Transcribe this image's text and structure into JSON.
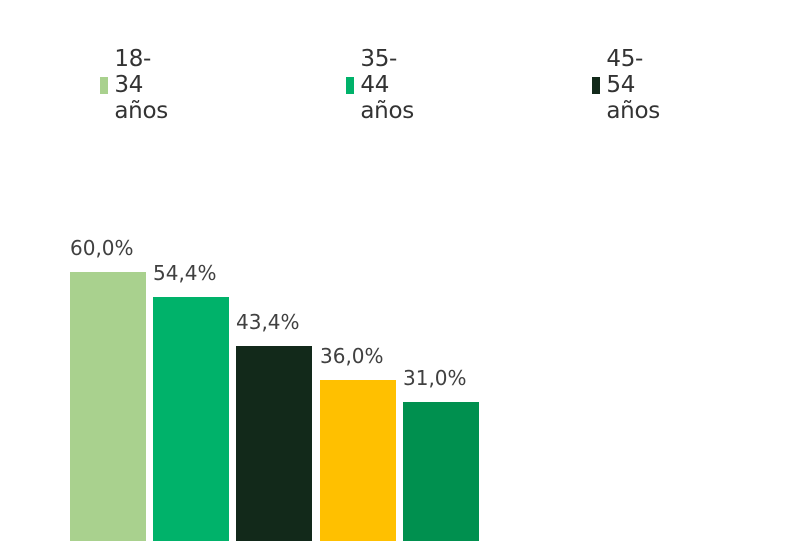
{
  "chart_data": {
    "type": "bar",
    "title": "",
    "xlabel": "",
    "ylabel": "",
    "grid": false,
    "legend_position": "top",
    "legend": [
      {
        "label": "18-34 años",
        "color": "#a9d18e"
      },
      {
        "label": "35-44 años",
        "color": "#00b26a"
      },
      {
        "label": "45-54 años",
        "color": "#12291a"
      }
    ],
    "categories": [
      "18-34 años",
      "35-44 años",
      "45-54 años",
      "",
      ""
    ],
    "values": [
      60.0,
      54.4,
      43.4,
      36.0,
      31.0
    ],
    "value_labels": [
      "60,0%",
      "54,4%",
      "43,4%",
      "36,0%",
      "31,0%"
    ],
    "colors": [
      "#a9d18e",
      "#00b26a",
      "#12291a",
      "#ffc000",
      "#00904f"
    ],
    "ylim": [
      0,
      60
    ]
  }
}
